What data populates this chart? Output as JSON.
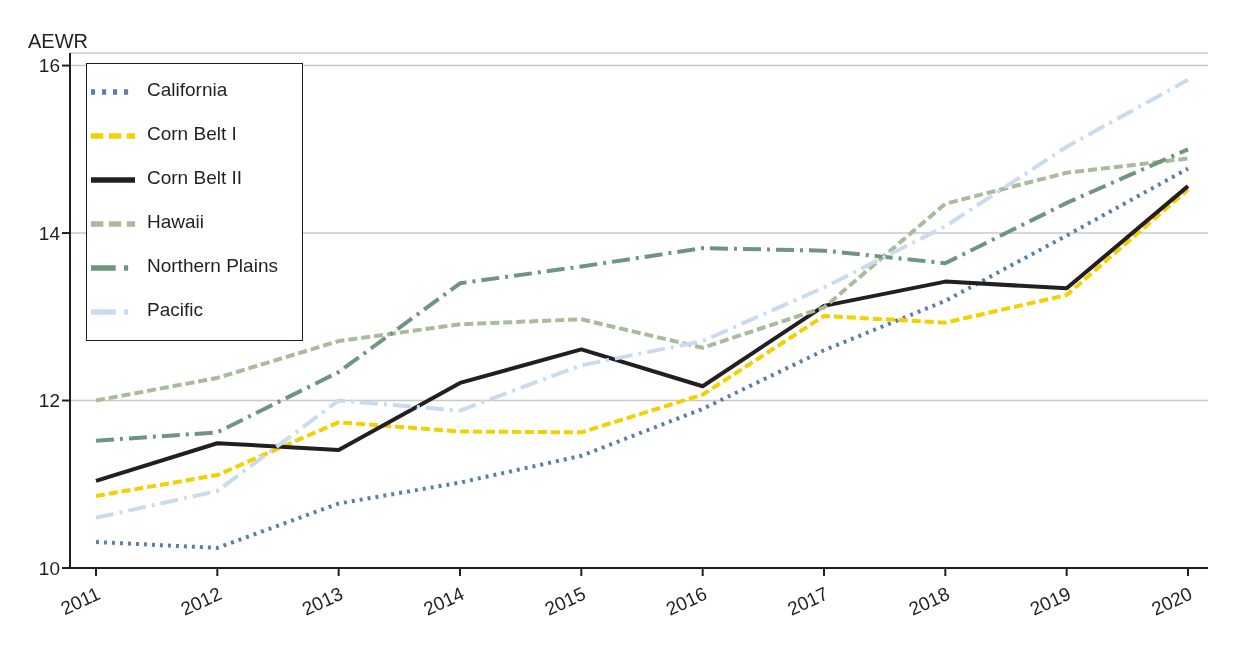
{
  "chart_data": {
    "type": "line",
    "ylabel": "AEWR",
    "categories": [
      "2011",
      "2012",
      "2013",
      "2014",
      "2015",
      "2016",
      "2017",
      "2018",
      "2019",
      "2020"
    ],
    "series": [
      {
        "name": "California",
        "color": "#5b7fa6",
        "line_style": "dotted",
        "values": [
          10.31,
          10.24,
          10.77,
          11.02,
          11.34,
          11.9,
          12.6,
          13.19,
          13.97,
          14.77
        ]
      },
      {
        "name": "Corn Belt I",
        "color": "#f5d000",
        "line_style": "dashed",
        "values": [
          10.86,
          11.11,
          11.74,
          11.63,
          11.62,
          12.07,
          13.01,
          12.93,
          13.26,
          14.52
        ]
      },
      {
        "name": "Corn Belt II",
        "color": "#231f20",
        "line_style": "solid",
        "values": [
          11.04,
          11.49,
          11.41,
          12.21,
          12.61,
          12.17,
          13.13,
          13.42,
          13.34,
          14.56
        ]
      },
      {
        "name": "Hawaii",
        "color": "#a9bb98",
        "line_style": "dashed",
        "values": [
          12.0,
          12.27,
          12.71,
          12.91,
          12.97,
          12.63,
          13.11,
          14.35,
          14.72,
          14.89
        ]
      },
      {
        "name": "Northern Plains",
        "color": "#6e9580",
        "line_style": "dashdot",
        "values": [
          11.52,
          11.62,
          12.34,
          13.4,
          13.6,
          13.82,
          13.79,
          13.64,
          14.36,
          15.0
        ]
      },
      {
        "name": "Pacific",
        "color": "#c9dcef",
        "line_style": "dashdot",
        "values": [
          10.6,
          10.92,
          12.0,
          11.88,
          12.42,
          12.71,
          13.35,
          14.08,
          15.03,
          15.83
        ]
      }
    ],
    "ylim": [
      10,
      16.15
    ],
    "yticks": [
      10,
      12,
      14,
      16
    ],
    "grid": "y",
    "legend": "top left",
    "marker": "none"
  }
}
